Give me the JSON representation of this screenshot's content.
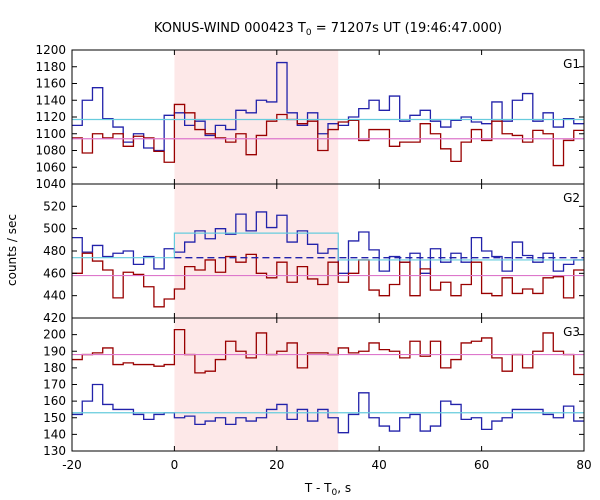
{
  "chart_data": {
    "type": "line",
    "title_main": "KONUS-WIND 000423 T",
    "title_sub": "0",
    "title_rest": " = 71207s UT (19:46:47.000)",
    "xlabel_main": "T - T",
    "xlabel_sub": "0",
    "xlabel_rest": ", s",
    "ylabel": "counts / sec",
    "xlim": [
      -20,
      80
    ],
    "xticks": [
      "-20",
      "0",
      "20",
      "40",
      "60",
      "80"
    ],
    "shaded_interval": [
      0,
      32
    ],
    "step_edges": [
      -20,
      -18,
      -16,
      -14,
      -12,
      -10,
      -8,
      -6,
      -4,
      -2,
      0,
      2,
      4,
      6,
      8,
      10,
      12,
      14,
      16,
      18,
      20,
      22,
      24,
      26,
      28,
      30,
      32,
      34,
      36,
      38,
      40,
      42,
      44,
      46,
      48,
      50,
      52,
      54,
      56,
      58,
      60,
      62,
      64,
      66,
      68,
      70,
      72,
      74,
      76,
      78,
      80
    ],
    "colors": {
      "shade": "#fde8e8",
      "dark_red": "#990000",
      "blue": "#2222aa",
      "pink_line": "#dd77cc",
      "cyan_line": "#66ccdd",
      "grid_axis": "#000000"
    },
    "panels": [
      {
        "label": "G1",
        "ylim": [
          1040,
          1200
        ],
        "yticks": [
          "1040",
          "1060",
          "1080",
          "1100",
          "1120",
          "1140",
          "1160",
          "1180",
          "1200"
        ],
        "series": [
          {
            "color_key": "blue",
            "values": [
              1110,
              1140,
              1155,
              1118,
              1108,
              1090,
              1100,
              1083,
              1080,
              1122,
              1125,
              1110,
              1115,
              1098,
              1110,
              1105,
              1128,
              1125,
              1140,
              1138,
              1185,
              1125,
              1110,
              1125,
              1100,
              1112,
              1110,
              1120,
              1130,
              1140,
              1128,
              1145,
              1115,
              1122,
              1128,
              1115,
              1108,
              1116,
              1120,
              1114,
              1112,
              1138,
              1115,
              1140,
              1148,
              1115,
              1125,
              1108,
              1118,
              1112
            ]
          },
          {
            "color_key": "dark_red",
            "values": [
              1095,
              1077,
              1100,
              1095,
              1100,
              1085,
              1097,
              1095,
              1079,
              1066,
              1135,
              1125,
              1105,
              1100,
              1095,
              1090,
              1100,
              1075,
              1098,
              1115,
              1123,
              1117,
              1112,
              1115,
              1080,
              1105,
              1114,
              1116,
              1092,
              1105,
              1105,
              1085,
              1090,
              1090,
              1112,
              1100,
              1082,
              1067,
              1090,
              1105,
              1092,
              1115,
              1100,
              1098,
              1090,
              1104,
              1100,
              1062,
              1092,
              1104
            ]
          },
          {
            "color_key": "cyan_line",
            "flat": 1117
          },
          {
            "color_key": "pink_line",
            "flat": 1094
          }
        ]
      },
      {
        "label": "G2",
        "ylim": [
          420,
          540
        ],
        "yticks": [
          "420",
          "440",
          "460",
          "480",
          "500",
          "520"
        ],
        "series": [
          {
            "color_key": "blue",
            "values": [
              492,
              479,
              485,
              475,
              478,
              480,
              468,
              475,
              464,
              482,
              479,
              488,
              498,
              491,
              500,
              495,
              513,
              498,
              515,
              501,
              512,
              488,
              498,
              486,
              478,
              482,
              460,
              489,
              497,
              481,
              462,
              475,
              470,
              478,
              460,
              482,
              470,
              478,
              470,
              492,
              480,
              475,
              462,
              488,
              476,
              470,
              478,
              462,
              468,
              472
            ]
          },
          {
            "color_key": "dark_red",
            "values": [
              460,
              478,
              471,
              463,
              438,
              461,
              459,
              448,
              430,
              437,
              446,
              466,
              463,
              472,
              461,
              475,
              470,
              477,
              460,
              456,
              470,
              452,
              466,
              455,
              450,
              470,
              452,
              460,
              472,
              445,
              440,
              450,
              470,
              440,
              464,
              445,
              452,
              440,
              450,
              470,
              442,
              440,
              456,
              442,
              446,
              442,
              456,
              457,
              438,
              463
            ]
          },
          {
            "color_key": "cyan_line",
            "segments": [
              [
                -20,
                0,
                474
              ],
              [
                0,
                32,
                496
              ],
              [
                32,
                80,
                472
              ]
            ]
          },
          {
            "color_key": "pink_line",
            "flat": 458
          },
          {
            "color_key": "blue",
            "dashed": true,
            "segment": [
              0,
              80,
              474
            ]
          }
        ]
      },
      {
        "label": "G3",
        "ylim": [
          130,
          210
        ],
        "yticks": [
          "130",
          "140",
          "150",
          "160",
          "170",
          "180",
          "190",
          "200"
        ],
        "series": [
          {
            "color_key": "dark_red",
            "values": [
              185,
              188,
              189,
              192,
              182,
              183,
              182,
              182,
              181,
              182,
              203,
              188,
              177,
              178,
              185,
              196,
              190,
              186,
              201,
              188,
              190,
              195,
              180,
              189,
              189,
              188,
              192,
              189,
              190,
              195,
              191,
              190,
              186,
              196,
              187,
              196,
              180,
              185,
              195,
              196,
              198,
              186,
              178,
              188,
              180,
              190,
              201,
              190,
              188,
              176
            ]
          },
          {
            "color_key": "blue",
            "values": [
              152,
              160,
              170,
              158,
              155,
              155,
              152,
              149,
              152,
              153,
              150,
              151,
              146,
              148,
              150,
              146,
              150,
              148,
              150,
              155,
              158,
              149,
              155,
              148,
              155,
              150,
              141,
              152,
              165,
              150,
              145,
              142,
              150,
              152,
              142,
              145,
              160,
              158,
              149,
              150,
              143,
              148,
              150,
              155,
              155,
              155,
              152,
              150,
              157,
              148
            ]
          },
          {
            "color_key": "pink_line",
            "flat": 188
          },
          {
            "color_key": "cyan_line",
            "flat": 153
          }
        ]
      }
    ]
  }
}
